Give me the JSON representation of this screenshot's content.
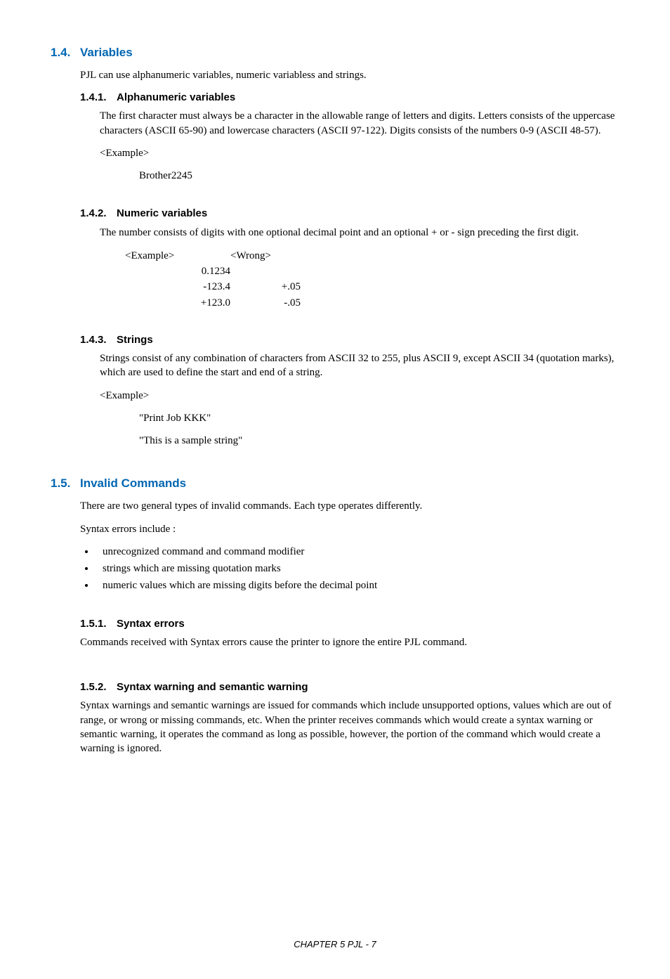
{
  "section14": {
    "num": "1.4.",
    "title": "Variables",
    "intro": "PJL can use alphanumeric variables, numeric variabless and strings.",
    "s141": {
      "num": "1.4.1.",
      "title": "Alphanumeric variables",
      "para": "The first character must always be a character in the allowable range of letters and digits.  Letters consists of the uppercase characters (ASCII 65-90) and lowercase characters (ASCII 97-122).  Digits consists of the numbers 0-9 (ASCII 48-57).",
      "example_label": "<Example>",
      "example_value": "Brother2245"
    },
    "s142": {
      "num": "1.4.2.",
      "title": "Numeric variables",
      "para": "The number consists of digits with one optional decimal point and an optional + or - sign preceding the first digit.",
      "header_example": "<Example>",
      "header_wrong": "<Wrong>",
      "rows": [
        {
          "c1": "0.1234",
          "c2": ""
        },
        {
          "c1": "-123.4",
          "c2": "+.05"
        },
        {
          "c1": "+123.0",
          "c2": "-.05"
        }
      ]
    },
    "s143": {
      "num": "1.4.3.",
      "title": "Strings",
      "para": "Strings consist of any combination of characters from ASCII 32 to 255, plus ASCII 9, except ASCII 34 (quotation marks), which are used to define the start and end of a string.",
      "example_label": "<Example>",
      "ex1": "\"Print Job  KKK\"",
      "ex2": "\"This is a sample string\""
    }
  },
  "section15": {
    "num": "1.5.",
    "title": "Invalid Commands",
    "intro1": "There are two general types of invalid commands.  Each type operates differently.",
    "intro2": "Syntax errors include :",
    "bullets": [
      "unrecognized command and command modifier",
      "strings which are missing quotation marks",
      "numeric values which are missing digits before the decimal point"
    ],
    "s151": {
      "num": "1.5.1.",
      "title": "Syntax errors",
      "para": "Commands received with Syntax errors cause the printer to ignore the entire PJL command."
    },
    "s152": {
      "num": "1.5.2.",
      "title": "Syntax warning and semantic warning",
      "para": "Syntax warnings and semantic warnings are issued for commands which include unsupported options, values which are out of range, or wrong  or missing commands, etc.  When the printer receives commands which would create a syntax warning or semantic warning, it operates the command as long as possible, however, the  portion of the command which would create a  warning is ignored."
    }
  },
  "footer": "CHAPTER 5 PJL - 7"
}
